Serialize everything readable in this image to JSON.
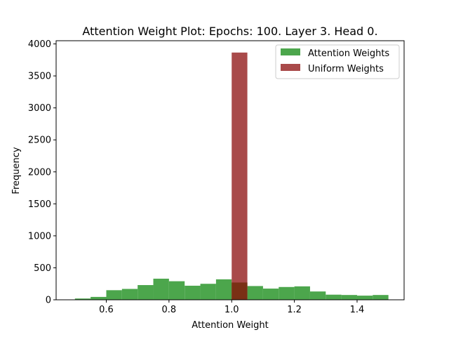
{
  "chart_data": {
    "type": "bar",
    "title": "Attention Weight Plot: Epochs: 100. Layer 3. Head 0.",
    "xlabel": "Attention Weight",
    "ylabel": "Frequency",
    "xlim": [
      0.44,
      1.55
    ],
    "ylim": [
      0,
      4050
    ],
    "xticks": [
      0.6,
      0.8,
      1.0,
      1.2,
      1.4
    ],
    "xtick_labels": [
      "0.6",
      "0.8",
      "1.0",
      "1.2",
      "1.4"
    ],
    "yticks": [
      0,
      500,
      1000,
      1500,
      2000,
      2500,
      3000,
      3500,
      4000
    ],
    "ytick_labels": [
      "0",
      "500",
      "1000",
      "1500",
      "2000",
      "2500",
      "3000",
      "3500",
      "4000"
    ],
    "grid": false,
    "legend_position": "top-right",
    "series": [
      {
        "name": "Attention Weights",
        "color": "#4ca64c",
        "bin_width": 0.05,
        "bin_starts": [
          0.5,
          0.55,
          0.6,
          0.65,
          0.7,
          0.75,
          0.8,
          0.85,
          0.9,
          0.95,
          1.0,
          1.05,
          1.1,
          1.15,
          1.2,
          1.25,
          1.3,
          1.35,
          1.4,
          1.45
        ],
        "values": [
          20,
          45,
          150,
          170,
          230,
          330,
          290,
          220,
          250,
          320,
          270,
          215,
          175,
          200,
          210,
          130,
          80,
          75,
          65,
          75
        ]
      },
      {
        "name": "Uniform Weights",
        "color": "#a94a4a",
        "bin_width": 0.05,
        "bin_starts": [
          1.0
        ],
        "values": [
          3865
        ]
      }
    ],
    "overlap_color": "#7a3015"
  }
}
